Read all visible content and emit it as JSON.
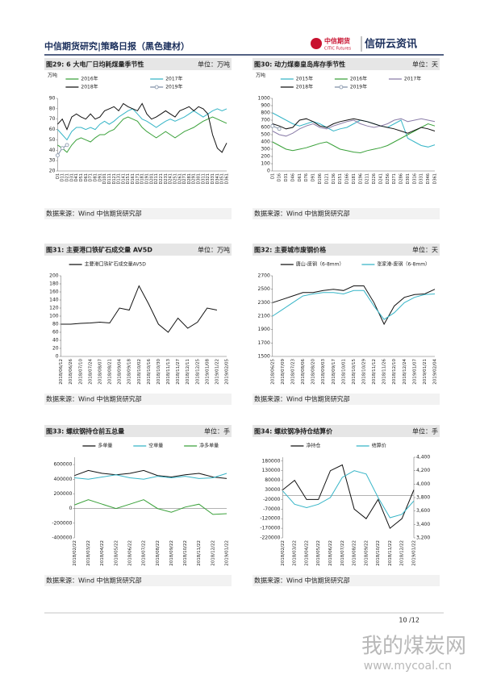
{
  "header": {
    "title": "中信期货研究|策略日报（黑色建材）",
    "logo_cn": "中信期货",
    "logo_en": "CITIC Futures",
    "brand": "信研云资讯"
  },
  "chart_data": [
    {
      "type": "line",
      "title": "图29: 6 大电厂日均耗煤量季节性",
      "unit": "单位：万吨",
      "y_label": "万吨",
      "categories": [
        "D1",
        "D11",
        "D21",
        "D31",
        "D41",
        "D51",
        "D61",
        "D71",
        "D81",
        "D91",
        "D101",
        "D111",
        "D121",
        "D131",
        "D141",
        "D151",
        "D161",
        "D171",
        "D181",
        "D191",
        "D201",
        "D211",
        "D221",
        "D231",
        "D241",
        "D251",
        "D261",
        "D271",
        "D281",
        "D291",
        "D301",
        "D311",
        "D321",
        "D331",
        "D341",
        "D351",
        "D361"
      ],
      "series": [
        {
          "name": "2016年",
          "color": "#3aa13a",
          "values": [
            45,
            42,
            38,
            45,
            50,
            52,
            50,
            48,
            52,
            55,
            55,
            58,
            60,
            65,
            70,
            72,
            70,
            68,
            62,
            58,
            55,
            52,
            55,
            58,
            55,
            52,
            55,
            58,
            60,
            62,
            65,
            68,
            70,
            72,
            70,
            68,
            66
          ]
        },
        {
          "name": "2017年",
          "color": "#36b5c7",
          "values": [
            60,
            55,
            50,
            58,
            62,
            62,
            60,
            62,
            60,
            65,
            68,
            65,
            68,
            72,
            75,
            78,
            80,
            75,
            70,
            68,
            65,
            62,
            65,
            68,
            70,
            68,
            70,
            72,
            75,
            78,
            75,
            72,
            75,
            78,
            80,
            78,
            80
          ]
        },
        {
          "name": "2018年",
          "color": "#111111",
          "values": [
            65,
            70,
            60,
            72,
            75,
            72,
            70,
            75,
            70,
            72,
            78,
            80,
            82,
            78,
            85,
            82,
            80,
            78,
            85,
            75,
            70,
            72,
            75,
            78,
            75,
            72,
            78,
            80,
            82,
            78,
            82,
            80,
            75,
            55,
            42,
            38,
            47
          ]
        },
        {
          "name": "2019年",
          "color": "#7f8fa6",
          "marker": "circle",
          "values": [
            35,
            42,
            45,
            null,
            null,
            null,
            null,
            null,
            null,
            null,
            null,
            null,
            null,
            null,
            null,
            null,
            null,
            null,
            null,
            null,
            null,
            null,
            null,
            null,
            null,
            null,
            null,
            null,
            null,
            null,
            null,
            null,
            null,
            null,
            null,
            null,
            null
          ]
        }
      ],
      "ylim": [
        20,
        90
      ],
      "yticks": [
        20,
        30,
        40,
        50,
        60,
        70,
        80,
        90
      ],
      "source": "数据来源：Wind  中信期货研究部"
    },
    {
      "type": "line",
      "title": "图30: 动力煤秦皇岛库存季节性",
      "unit": "单位：天",
      "y_label": "万吨",
      "categories": [
        "D1",
        "D16",
        "D31",
        "D46",
        "D61",
        "D76",
        "D91",
        "D106",
        "D121",
        "D136",
        "D151",
        "D166",
        "D181",
        "D196",
        "D211",
        "D226",
        "D241",
        "D256",
        "D271",
        "D286",
        "D301",
        "D316",
        "D331",
        "D346",
        "D361"
      ],
      "series": [
        {
          "name": "2015年",
          "color": "#36b5c7",
          "values": [
            800,
            750,
            700,
            650,
            620,
            650,
            680,
            650,
            600,
            550,
            580,
            600,
            650,
            700,
            680,
            650,
            620,
            600,
            650,
            700,
            450,
            400,
            350,
            330,
            360
          ]
        },
        {
          "name": "2016年",
          "color": "#3aa13a",
          "values": [
            400,
            350,
            300,
            280,
            300,
            320,
            350,
            380,
            400,
            350,
            300,
            280,
            260,
            250,
            280,
            300,
            320,
            350,
            400,
            450,
            500,
            550,
            600,
            650,
            620
          ]
        },
        {
          "name": "2017年",
          "color": "#8a7ca8",
          "values": [
            550,
            500,
            480,
            520,
            580,
            620,
            650,
            600,
            580,
            620,
            650,
            680,
            700,
            650,
            620,
            600,
            620,
            650,
            700,
            720,
            680,
            700,
            720,
            700,
            680
          ]
        },
        {
          "name": "2018年",
          "color": "#111111",
          "values": [
            650,
            620,
            580,
            600,
            700,
            720,
            680,
            620,
            600,
            650,
            680,
            700,
            720,
            700,
            680,
            650,
            620,
            600,
            580,
            550,
            520,
            560,
            600,
            580,
            550
          ]
        },
        {
          "name": "2019年",
          "color": "#7f8fa6",
          "marker": "circle",
          "values": [
            620,
            580,
            null,
            null,
            null,
            null,
            null,
            null,
            null,
            null,
            null,
            null,
            null,
            null,
            null,
            null,
            null,
            null,
            null,
            null,
            null,
            null,
            null,
            null,
            null
          ]
        }
      ],
      "ylim": [
        0,
        1000
      ],
      "yticks": [
        0,
        100,
        200,
        300,
        400,
        500,
        600,
        700,
        800,
        900,
        1000
      ],
      "source": "数据来源：Wind  中信期货研究部"
    },
    {
      "type": "line",
      "title": "图31: 主要港口铁矿石成交量 AV5D",
      "unit": "单位：万吨",
      "categories": [
        "2018/06/12",
        "2018/06/26",
        "2018/07/10",
        "2018/07/24",
        "2018/08/07",
        "2018/08/21",
        "2018/09/04",
        "2018/09/18",
        "2018/10/02",
        "2018/10/16",
        "2018/10/30",
        "2018/11/13",
        "2018/11/27",
        "2018/12/11",
        "2018/12/25",
        "2019/01/08",
        "2019/01/22",
        "2019/02/05"
      ],
      "series": [
        {
          "name": "主要港口铁矿石成交量AV5D",
          "color": "#111111",
          "values": [
            80,
            80,
            82,
            83,
            85,
            83,
            120,
            115,
            175,
            130,
            80,
            60,
            95,
            70,
            85,
            120,
            115,
            null
          ]
        }
      ],
      "ylim": [
        0,
        200
      ],
      "yticks": [
        0,
        20,
        40,
        60,
        80,
        100,
        120,
        140,
        160,
        180,
        200
      ],
      "source": "数据来源：Wind  中信期货研究部"
    },
    {
      "type": "line",
      "title": "图32: 主要城市废钢价格",
      "unit": "单位：天",
      "categories": [
        "2018/06/25",
        "2018/07/09",
        "2018/07/23",
        "2018/08/06",
        "2018/08/20",
        "2018/09/03",
        "2018/09/17",
        "2018/10/01",
        "2018/10/15",
        "2018/10/29",
        "2018/11/12",
        "2018/11/26",
        "2018/12/10",
        "2018/12/24",
        "2019/01/07",
        "2019/01/21",
        "2019/02/04"
      ],
      "series": [
        {
          "name": "唐山-废钢（6-8mm）",
          "color": "#111111",
          "values": [
            2300,
            2350,
            2400,
            2450,
            2450,
            2480,
            2500,
            2480,
            2550,
            2550,
            2300,
            1980,
            2250,
            2380,
            2420,
            2430,
            2500
          ]
        },
        {
          "name": "张家港-废钢（6-8mm）",
          "color": "#36b5c7",
          "values": [
            2100,
            2200,
            2300,
            2400,
            2430,
            2450,
            2450,
            2430,
            2480,
            2480,
            2250,
            2050,
            2150,
            2300,
            2380,
            2420,
            2430
          ]
        }
      ],
      "ylim": [
        1500,
        2700
      ],
      "yticks": [
        1500,
        1700,
        1900,
        2100,
        2300,
        2500,
        2700
      ],
      "source": "数据来源：Wind  中信期货研究部"
    },
    {
      "type": "line",
      "title": "图33: 螺纹钢持仓前五总量",
      "unit": "单位：手",
      "categories": [
        "2018/02/22",
        "2018/03/22",
        "2018/04/22",
        "2018/05/22",
        "2018/06/22",
        "2018/07/22",
        "2018/08/22",
        "2018/09/22",
        "2018/10/22",
        "2018/11/22",
        "2018/12/22",
        "2019/01/22"
      ],
      "series": [
        {
          "name": "多单量",
          "color": "#111111",
          "values": [
            450000,
            520000,
            480000,
            460000,
            480000,
            520000,
            450000,
            430000,
            460000,
            480000,
            430000,
            410000
          ]
        },
        {
          "name": "空单量",
          "color": "#36b5c7",
          "values": [
            420000,
            400000,
            430000,
            460000,
            420000,
            400000,
            440000,
            420000,
            440000,
            410000,
            420000,
            480000
          ]
        },
        {
          "name": "净多单量",
          "color": "#3aa13a",
          "values": [
            50000,
            120000,
            60000,
            0,
            60000,
            120000,
            0,
            -50000,
            20000,
            60000,
            -80000,
            -70000
          ]
        }
      ],
      "ylim": [
        -400000,
        700000
      ],
      "yticks": [
        -400000,
        -200000,
        0,
        200000,
        400000,
        600000
      ],
      "source": "数据来源：Wind  中信期货研究部"
    },
    {
      "type": "line",
      "title": "图34: 螺纹钢净持仓结算价",
      "unit": "单位：手",
      "categories": [
        "2018/02/22",
        "2018/03/22",
        "2018/04/22",
        "2018/05/22",
        "2018/06/22",
        "2018/07/22",
        "2018/08/22",
        "2018/09/22",
        "2018/10/22",
        "2018/11/22",
        "2018/12/22",
        "2019/01/22"
      ],
      "series": [
        {
          "name": "净持仓",
          "color": "#111111",
          "values": [
            30000,
            80000,
            -20000,
            -20000,
            130000,
            160000,
            -70000,
            -120000,
            -20000,
            -170000,
            -120000,
            30000
          ]
        },
        {
          "name": "结算价",
          "color": "#36b5c7",
          "axis": "y2",
          "values": [
            3900,
            3700,
            3650,
            3700,
            3800,
            4100,
            4200,
            4150,
            3800,
            3500,
            3550,
            3750
          ]
        }
      ],
      "ylim": [
        -220000,
        200000
      ],
      "yticks": [
        -220000,
        -170000,
        -120000,
        -70000,
        -20000,
        30000,
        80000,
        130000,
        180000
      ],
      "y2lim": [
        3200,
        4400
      ],
      "y2ticks": [
        {
          "value": 3200,
          "label": "3,200"
        },
        {
          "value": 3400,
          "label": "3,400"
        },
        {
          "value": 3600,
          "label": "3,600"
        },
        {
          "value": 3800,
          "label": "3,800"
        },
        {
          "value": 4000,
          "label": "4,000"
        },
        {
          "value": 4200,
          "label": "4,200"
        },
        {
          "value": 4400,
          "label": "4,400"
        }
      ],
      "source": "数据来源：Wind  中信期货研究部"
    }
  ],
  "footer": {
    "page": "10 /12",
    "watermark": "我的煤炭网",
    "watermark_url": "www.mycoal.cn"
  }
}
